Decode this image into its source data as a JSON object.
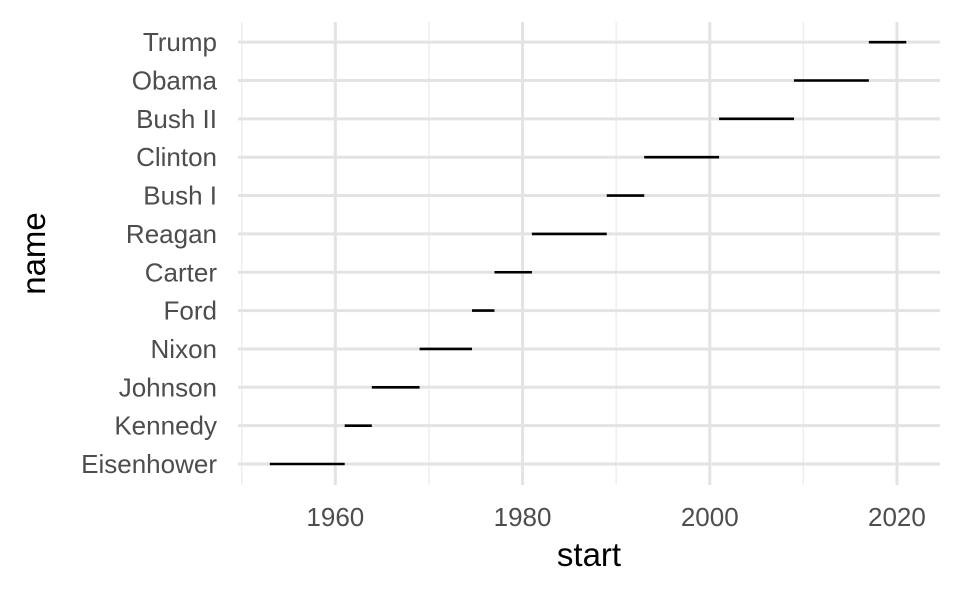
{
  "chart_data": {
    "type": "segment",
    "xlabel": "start",
    "ylabel": "name",
    "xlim": [
      1949.6,
      2024.6
    ],
    "x_ticks": [
      1960,
      1980,
      2000,
      2020
    ],
    "x_tick_labels": [
      "1960",
      "1980",
      "2000",
      "2020"
    ],
    "grid": true,
    "categories": [
      "Eisenhower",
      "Kennedy",
      "Johnson",
      "Nixon",
      "Ford",
      "Carter",
      "Reagan",
      "Bush I",
      "Clinton",
      "Bush II",
      "Obama",
      "Trump"
    ],
    "segments": [
      {
        "name": "Eisenhower",
        "start": 1953,
        "end": 1961
      },
      {
        "name": "Kennedy",
        "start": 1961,
        "end": 1963.9
      },
      {
        "name": "Johnson",
        "start": 1963.9,
        "end": 1969
      },
      {
        "name": "Nixon",
        "start": 1969,
        "end": 1974.6
      },
      {
        "name": "Ford",
        "start": 1974.6,
        "end": 1977
      },
      {
        "name": "Carter",
        "start": 1977,
        "end": 1981
      },
      {
        "name": "Reagan",
        "start": 1981,
        "end": 1989
      },
      {
        "name": "Bush I",
        "start": 1989,
        "end": 1993
      },
      {
        "name": "Clinton",
        "start": 1993,
        "end": 2001
      },
      {
        "name": "Bush II",
        "start": 2001,
        "end": 2009
      },
      {
        "name": "Obama",
        "start": 2009,
        "end": 2017
      },
      {
        "name": "Trump",
        "start": 2017,
        "end": 2021
      }
    ]
  }
}
